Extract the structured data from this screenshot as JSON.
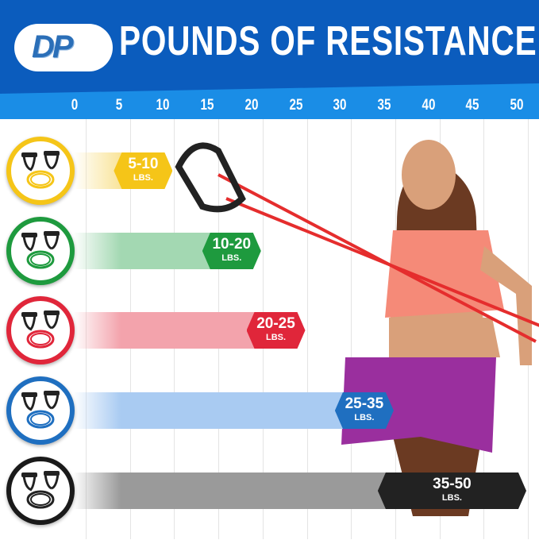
{
  "header": {
    "title": "POUNDS OF RESISTANCE",
    "logo_text": "DP"
  },
  "colors": {
    "header_dark": "#0b5cbd",
    "header_band": "#1a8de6"
  },
  "chart_data": {
    "type": "bar",
    "title": "POUNDS OF RESISTANCE",
    "xlim": [
      0,
      50
    ],
    "x_ticks": [
      "0",
      "5",
      "10",
      "15",
      "20",
      "25",
      "30",
      "35",
      "40",
      "45",
      "50"
    ],
    "grid": true,
    "unit": "LBS.",
    "categories": [
      "Yellow",
      "Green",
      "Red",
      "Blue",
      "Black"
    ],
    "ranges": [
      {
        "label": "5-10",
        "min": 5,
        "max": 10,
        "color": "#f5c518",
        "light": "#f9e49a"
      },
      {
        "label": "10-20",
        "min": 10,
        "max": 20,
        "color": "#1e9a3e",
        "light": "#a3d8b2"
      },
      {
        "label": "20-25",
        "min": 20,
        "max": 25,
        "color": "#e0263a",
        "light": "#f3a3ac"
      },
      {
        "label": "25-35",
        "min": 25,
        "max": 35,
        "color": "#1f6fc0",
        "light": "#a9cbf2"
      },
      {
        "label": "35-50",
        "min": 35,
        "max": 50,
        "color": "#222222",
        "light": "#9a9a9a"
      }
    ]
  }
}
